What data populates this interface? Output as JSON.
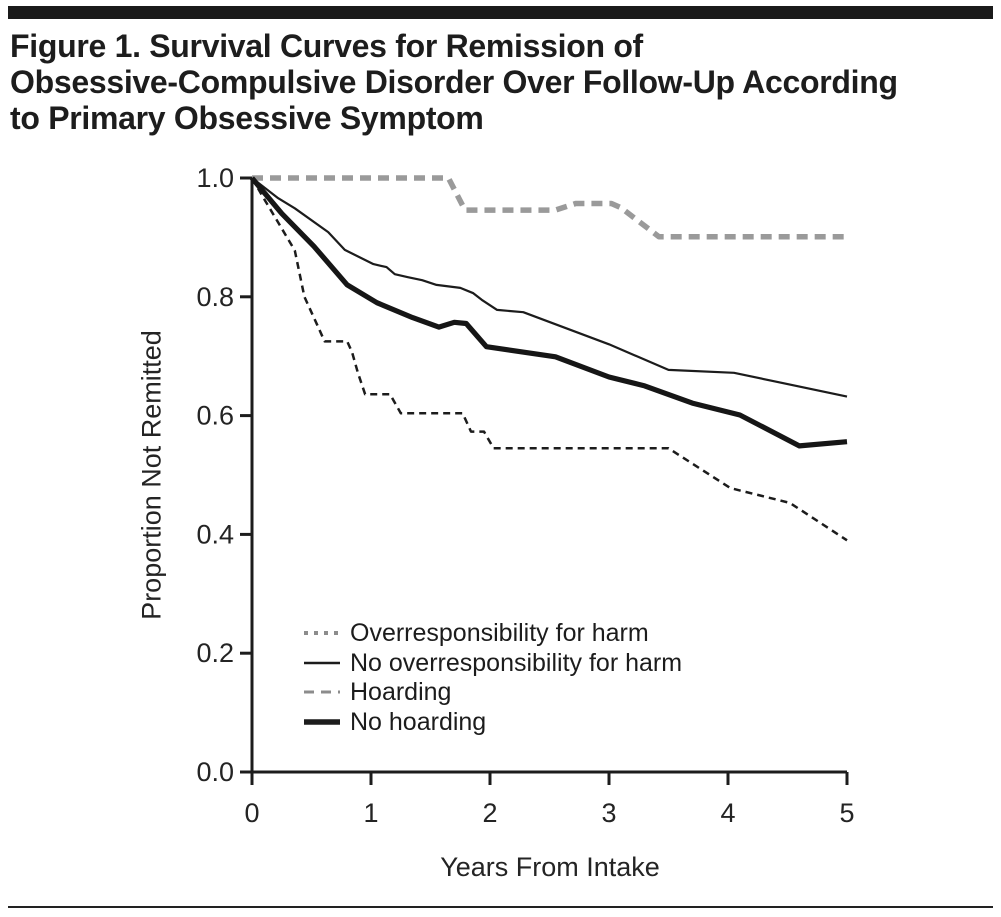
{
  "page": {
    "title_lines": [
      "Figure 1. Survival Curves for Remission of",
      "Obsessive-Compulsive Disorder Over Follow-Up According",
      "to Primary Obsessive Symptom"
    ]
  },
  "chart_data": {
    "type": "line",
    "subtype": "kaplan-meier-survival-curves",
    "title": "Figure 1. Survival Curves for Remission of Obsessive-Compulsive Disorder Over Follow-Up According to Primary Obsessive Symptom",
    "xlabel": "Years From Intake",
    "ylabel": "Proportion Not Remitted",
    "xlim": [
      0,
      5
    ],
    "ylim": [
      0.0,
      1.0
    ],
    "x_ticks": [
      0,
      1,
      2,
      3,
      4,
      5
    ],
    "x_tick_labels": [
      "0",
      "1",
      "2",
      "3",
      "4",
      "5"
    ],
    "y_ticks": [
      0.0,
      0.2,
      0.4,
      0.6,
      0.8,
      1.0
    ],
    "y_tick_labels": [
      "0.0",
      "0.2",
      "0.4",
      "0.6",
      "0.8",
      "1.0"
    ],
    "grid": false,
    "legend_position": "inside-lower-left",
    "axis_color": "#1c1c1c",
    "tick_label_color": "#242424",
    "series": [
      {
        "name": "Overresponsibility for harm",
        "line_style": "fine-dashed",
        "color": "#1c1c1c",
        "width": 2.5,
        "dash": "7 5",
        "legend": {
          "color": "#8c8c8c",
          "width": 4,
          "dash": "4 6"
        },
        "points": [
          [
            0,
            1.0
          ],
          [
            0.11,
            0.962
          ],
          [
            0.22,
            0.925
          ],
          [
            0.36,
            0.878
          ],
          [
            0.44,
            0.8
          ],
          [
            0.55,
            0.752
          ],
          [
            0.61,
            0.725
          ],
          [
            0.8,
            0.725
          ],
          [
            0.84,
            0.707
          ],
          [
            0.89,
            0.672
          ],
          [
            0.95,
            0.636
          ],
          [
            1.16,
            0.636
          ],
          [
            1.25,
            0.604
          ],
          [
            1.77,
            0.604
          ],
          [
            1.84,
            0.573
          ],
          [
            1.95,
            0.573
          ],
          [
            2.03,
            0.545
          ],
          [
            3.5,
            0.545
          ],
          [
            4.02,
            0.478
          ],
          [
            4.52,
            0.453
          ],
          [
            5.0,
            0.39
          ]
        ]
      },
      {
        "name": "No overresponsibility for harm",
        "line_style": "solid-thin",
        "color": "#1c1c1c",
        "width": 2.2,
        "dash": "",
        "legend": {
          "color": "#1c1c1c",
          "width": 2.5,
          "dash": ""
        },
        "points": [
          [
            0,
            1.0
          ],
          [
            0.22,
            0.966
          ],
          [
            0.36,
            0.949
          ],
          [
            0.64,
            0.909
          ],
          [
            0.78,
            0.879
          ],
          [
            1.02,
            0.855
          ],
          [
            1.13,
            0.85
          ],
          [
            1.2,
            0.838
          ],
          [
            1.31,
            0.833
          ],
          [
            1.43,
            0.828
          ],
          [
            1.55,
            0.82
          ],
          [
            1.75,
            0.815
          ],
          [
            1.86,
            0.806
          ],
          [
            1.93,
            0.795
          ],
          [
            2.06,
            0.778
          ],
          [
            2.28,
            0.774
          ],
          [
            3.0,
            0.72
          ],
          [
            3.5,
            0.677
          ],
          [
            4.05,
            0.672
          ],
          [
            5.0,
            0.632
          ]
        ]
      },
      {
        "name": "Hoarding",
        "line_style": "dashed-gray-thick",
        "color": "#9a9a9a",
        "width": 5.5,
        "dash": "11 7",
        "legend": {
          "color": "#8c8c8c",
          "width": 3,
          "dash": "10 7"
        },
        "points": [
          [
            0,
            1.0
          ],
          [
            1.65,
            1.0
          ],
          [
            1.79,
            0.946
          ],
          [
            2.55,
            0.946
          ],
          [
            2.72,
            0.957
          ],
          [
            3.02,
            0.957
          ],
          [
            3.1,
            0.95
          ],
          [
            3.42,
            0.901
          ],
          [
            5.0,
            0.901
          ]
        ]
      },
      {
        "name": "No hoarding",
        "line_style": "solid-thick",
        "color": "#161616",
        "width": 5.2,
        "dash": "",
        "legend": {
          "color": "#1c1c1c",
          "width": 5.5,
          "dash": ""
        },
        "points": [
          [
            0,
            1.0
          ],
          [
            0.25,
            0.94
          ],
          [
            0.52,
            0.885
          ],
          [
            0.8,
            0.82
          ],
          [
            1.05,
            0.79
          ],
          [
            1.35,
            0.765
          ],
          [
            1.57,
            0.749
          ],
          [
            1.7,
            0.757
          ],
          [
            1.8,
            0.755
          ],
          [
            1.97,
            0.716
          ],
          [
            2.55,
            0.699
          ],
          [
            3.0,
            0.665
          ],
          [
            3.3,
            0.65
          ],
          [
            3.7,
            0.621
          ],
          [
            4.1,
            0.601
          ],
          [
            4.6,
            0.549
          ],
          [
            5.0,
            0.556
          ]
        ]
      }
    ]
  }
}
